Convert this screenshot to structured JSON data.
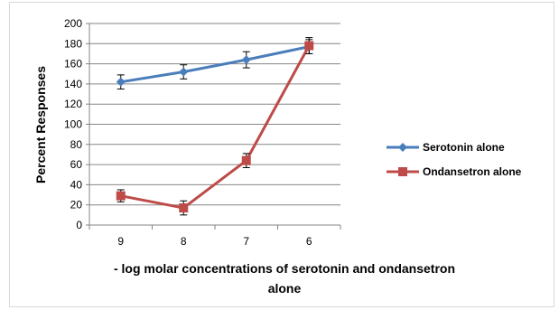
{
  "chart_data": {
    "type": "line",
    "title": "",
    "xlabel": "- log molar concentrations of serotonin and ondansetron alone",
    "ylabel": "Percent Responses",
    "categories": [
      "9",
      "8",
      "7",
      "6"
    ],
    "ylim": [
      0,
      200
    ],
    "yticks": [
      0,
      20,
      40,
      60,
      80,
      100,
      120,
      140,
      160,
      180,
      200
    ],
    "grid": true,
    "legend_position": "right",
    "series": [
      {
        "name": "Serotonin alone",
        "color": "#4a7ebb",
        "marker": "diamond",
        "values": [
          142,
          152,
          164,
          177
        ],
        "errors": [
          7,
          7,
          8,
          7
        ]
      },
      {
        "name": "Ondansetron alone",
        "color": "#be4b48",
        "marker": "square",
        "values": [
          29,
          17,
          64,
          178
        ],
        "errors": [
          6,
          7,
          7,
          8
        ]
      }
    ]
  }
}
